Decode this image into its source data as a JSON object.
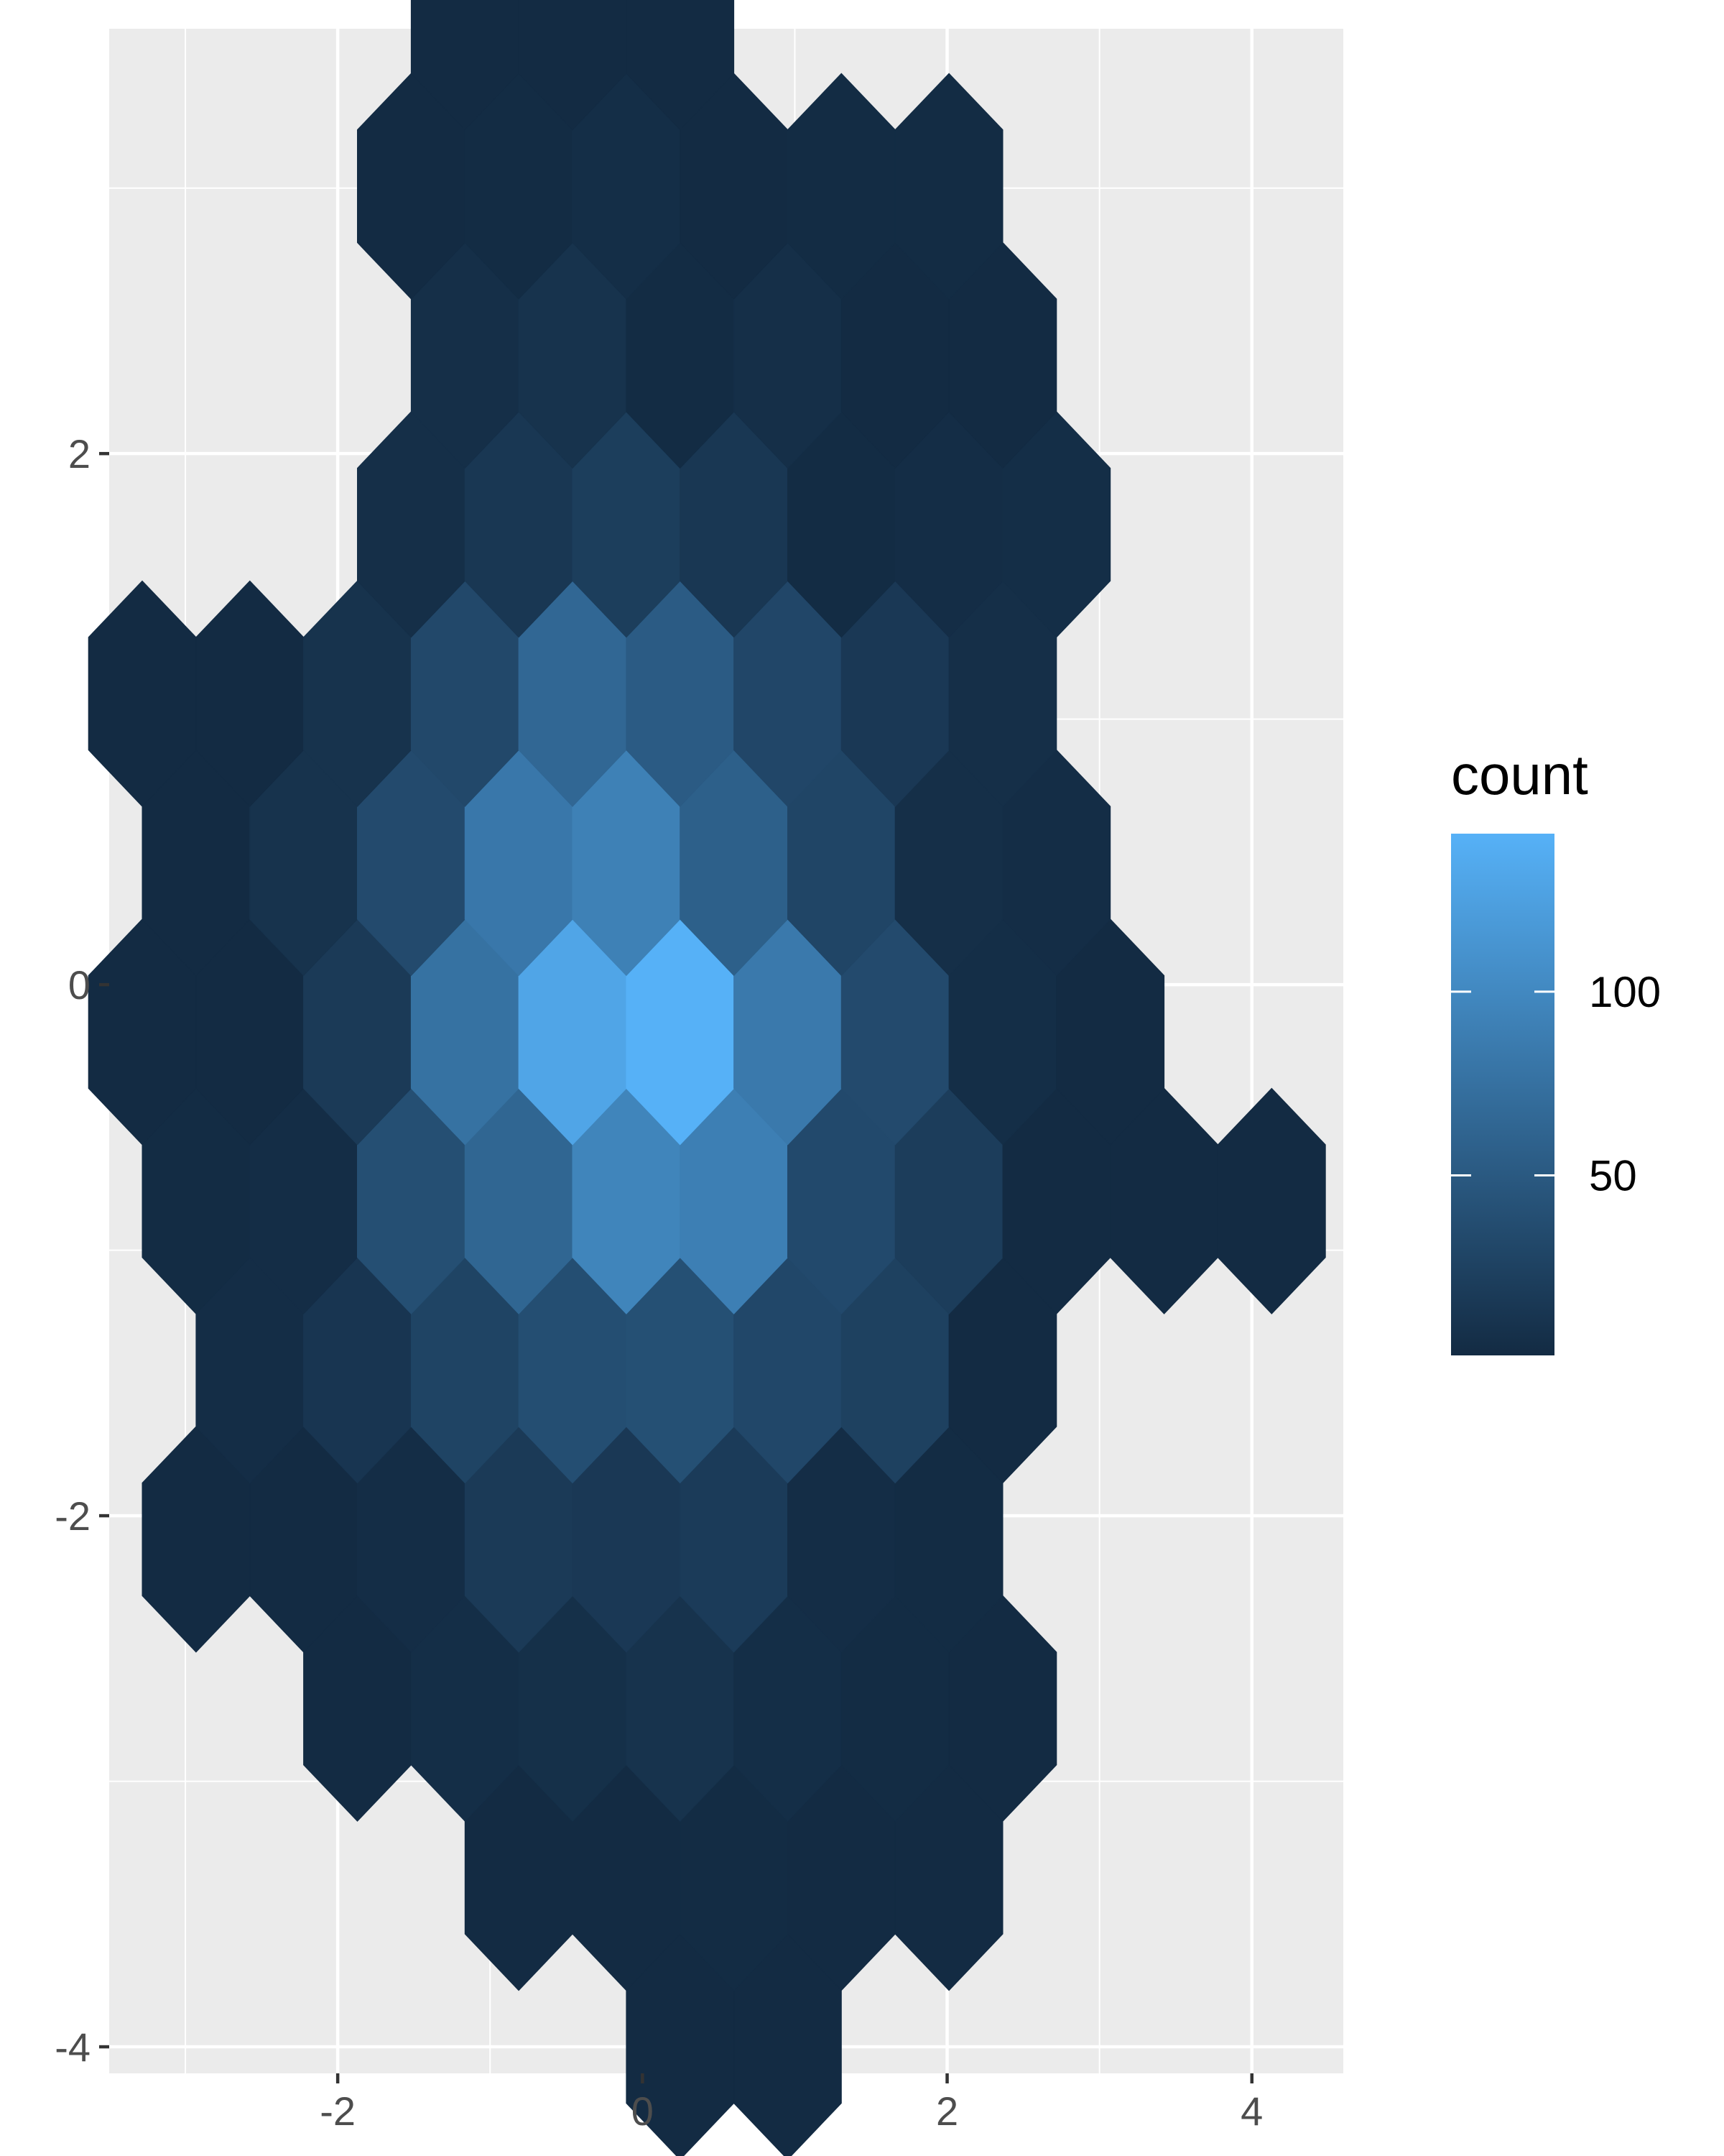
{
  "chart_data": {
    "type": "hexbin",
    "title": "",
    "xlabel": "",
    "ylabel": "",
    "xlim": [
      -3.5,
      4.6
    ],
    "ylim": [
      -4.1,
      3.6
    ],
    "x_ticks": [
      -2,
      0,
      2,
      4
    ],
    "y_ticks": [
      -4,
      -2,
      0,
      2
    ],
    "grid": true,
    "panel_background": "#EBEBEB",
    "legend": {
      "title": "count",
      "position": "right",
      "breaks": [
        50,
        100
      ],
      "range": [
        1,
        143
      ],
      "low_color": "#132B43",
      "high_color": "#56B1F7"
    },
    "hex_spacing": {
      "dx": 0.706,
      "dy": 0.637
    },
    "rows": [
      {
        "y": -4.0,
        "x_start": 0.247,
        "counts": [
          1,
          1
        ]
      },
      {
        "y": -3.363,
        "x_start": -0.812,
        "counts": [
          1,
          1,
          2,
          1,
          1
        ]
      },
      {
        "y": -2.726,
        "x_start": -1.871,
        "counts": [
          1,
          4,
          6,
          9,
          4,
          2,
          1
        ]
      },
      {
        "y": -2.089,
        "x_start": -2.93,
        "counts": [
          1,
          1,
          3,
          17,
          15,
          18,
          3,
          2
        ]
      },
      {
        "y": -1.452,
        "x_start": -2.577,
        "counts": [
          3,
          12,
          27,
          38,
          40,
          31,
          24,
          1
        ]
      },
      {
        "y": -0.815,
        "x_start": -2.93,
        "counts": [
          2,
          3,
          39,
          63,
          96,
          90,
          33,
          20,
          1,
          1,
          1
        ]
      },
      {
        "y": -0.178,
        "x_start": -3.283,
        "counts": [
          1,
          1,
          17,
          76,
          130,
          143,
          84,
          34,
          4,
          1
        ]
      },
      {
        "y": 0.459,
        "x_start": -2.93,
        "counts": [
          1,
          9,
          34,
          82,
          92,
          57,
          29,
          5,
          3
        ]
      },
      {
        "y": 1.096,
        "x_start": -3.283,
        "counts": [
          1,
          1,
          9,
          32,
          65,
          52,
          30,
          15,
          5
        ]
      },
      {
        "y": 1.733,
        "x_start": -1.518,
        "counts": [
          5,
          14,
          21,
          14,
          2,
          3,
          4
        ]
      },
      {
        "y": 2.37,
        "x_start": -1.165,
        "counts": [
          5,
          9,
          2,
          5,
          1,
          1
        ]
      },
      {
        "y": 3.007,
        "x_start": -1.518,
        "counts": [
          1,
          2,
          4,
          1,
          2,
          2
        ]
      },
      {
        "y": 3.644,
        "x_start": -1.165,
        "counts": [
          1,
          1,
          1
        ]
      }
    ]
  }
}
